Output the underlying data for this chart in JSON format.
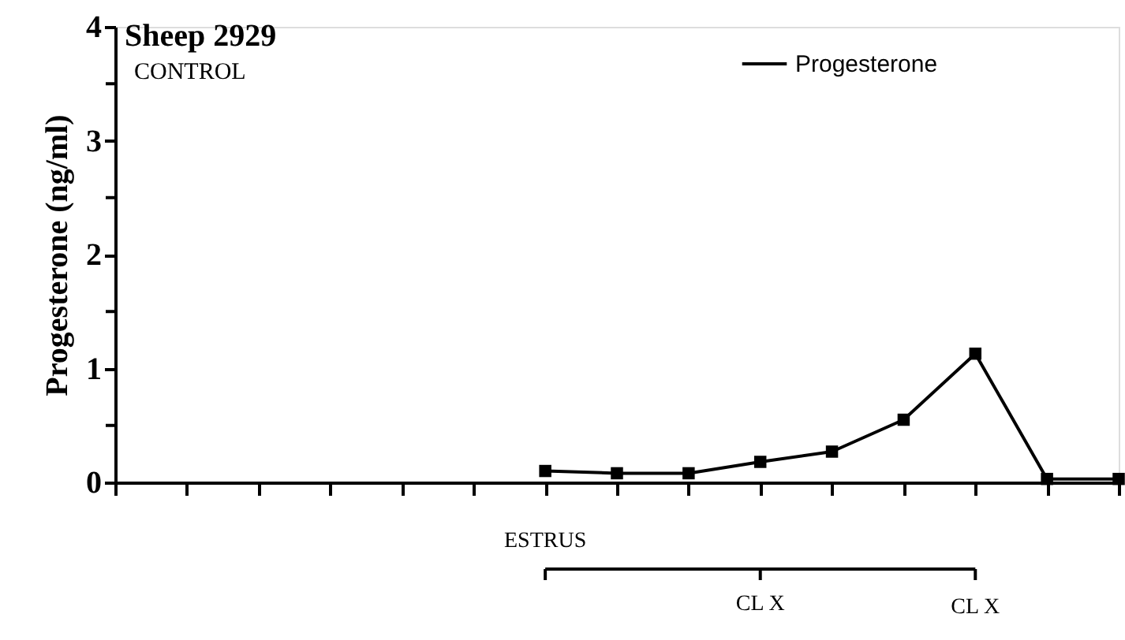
{
  "chart_data": {
    "type": "line",
    "title": "Sheep 2929",
    "subtitle": "CONTROL",
    "ylabel": "Progesterone  (ng/ml)",
    "categories": [
      null,
      null,
      null,
      null,
      null,
      null,
      null,
      null,
      null,
      null,
      null,
      null,
      null,
      null,
      null
    ],
    "series": [
      {
        "name": "Progesterone",
        "color": "#000000",
        "values": [
          null,
          null,
          null,
          null,
          null,
          null,
          0.1,
          0.08,
          0.08,
          0.18,
          0.27,
          0.55,
          1.13,
          0.03,
          0.03
        ]
      }
    ],
    "ylim": [
      0,
      4
    ],
    "yticks": [
      0,
      {
        "value": 0.5,
        "label": null
      },
      1,
      {
        "value": 1.5,
        "label": null
      },
      2,
      {
        "value": 2.5,
        "label": null
      },
      3,
      {
        "value": 3.5,
        "label": null
      },
      4
    ],
    "tick_labels": "y",
    "marker": "square",
    "line_style": "solid",
    "legend": "top right",
    "grid": false,
    "annotations": [
      "ESTRUS",
      "CL X",
      "CL X"
    ]
  }
}
